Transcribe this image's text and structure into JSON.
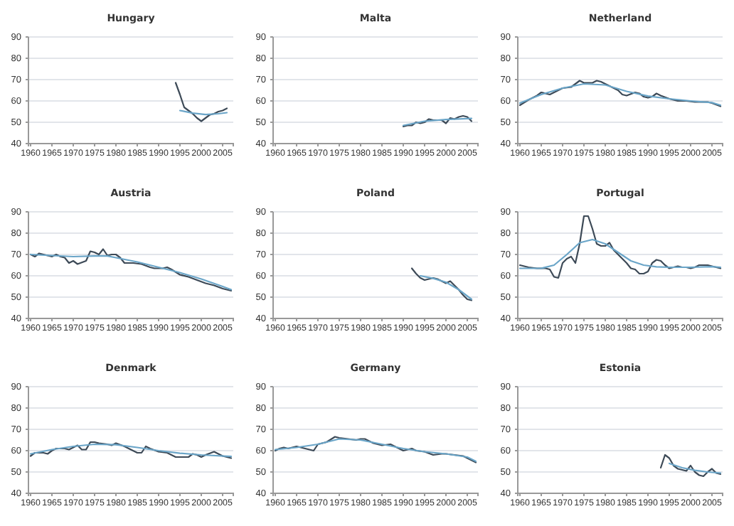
{
  "chart_data": [
    {
      "type": "line",
      "title": "Hungary",
      "xlim": [
        1959.5,
        2007.5
      ],
      "ylim": [
        40,
        90
      ],
      "xticks": [
        1960,
        1965,
        1970,
        1975,
        1980,
        1985,
        1990,
        1995,
        2000,
        2005
      ],
      "yticks": [
        40,
        50,
        60,
        70,
        80,
        90
      ],
      "grid": "y",
      "series": [
        {
          "color": "#3d4a57",
          "x": [
            1994,
            1995,
            1996,
            1997,
            1998,
            1999,
            2000,
            2001,
            2002,
            2003,
            2004,
            2005,
            2006
          ],
          "values": [
            68.5,
            63,
            57,
            55.5,
            54,
            52,
            50.5,
            52,
            53.5,
            54,
            55,
            55.5,
            56.5
          ]
        },
        {
          "color": "#6aa5c8",
          "x": [
            1995,
            1998,
            2001,
            2004,
            2006
          ],
          "values": [
            55.5,
            54.3,
            53.6,
            54,
            54.5
          ]
        }
      ]
    },
    {
      "type": "line",
      "title": "Malta",
      "xlim": [
        1959.5,
        2007.5
      ],
      "ylim": [
        40,
        90
      ],
      "xticks": [
        1960,
        1965,
        1970,
        1975,
        1980,
        1985,
        1990,
        1995,
        2000,
        2005
      ],
      "yticks": [
        40,
        50,
        60,
        70,
        80,
        90
      ],
      "grid": "y",
      "series": [
        {
          "color": "#3d4a57",
          "x": [
            1990,
            1991,
            1992,
            1993,
            1994,
            1995,
            1996,
            1997,
            1998,
            1999,
            2000,
            2001,
            2002,
            2003,
            2004,
            2005,
            2006
          ],
          "values": [
            48,
            48.5,
            48.5,
            50,
            49.5,
            50,
            51.5,
            51,
            51,
            51,
            49.5,
            52,
            51.5,
            52.5,
            53,
            52.5,
            50.5
          ]
        },
        {
          "color": "#6aa5c8",
          "x": [
            1990,
            1995,
            2000,
            2006
          ],
          "values": [
            48.5,
            50.5,
            51.3,
            51.8
          ]
        }
      ]
    },
    {
      "type": "line",
      "title": "Netherland",
      "xlim": [
        1959.5,
        2007.5
      ],
      "ylim": [
        40,
        90
      ],
      "xticks": [
        1960,
        1965,
        1970,
        1975,
        1980,
        1985,
        1990,
        1995,
        2000,
        2005
      ],
      "yticks": [
        40,
        50,
        60,
        70,
        80,
        90
      ],
      "grid": "y",
      "series": [
        {
          "color": "#3d4a57",
          "x": [
            1960,
            1962,
            1964,
            1965,
            1966,
            1967,
            1968,
            1970,
            1972,
            1974,
            1975,
            1977,
            1978,
            1979,
            1981,
            1983,
            1984,
            1985,
            1987,
            1988,
            1989,
            1990,
            1991,
            1992,
            1993,
            1995,
            1997,
            1999,
            2001,
            2003,
            2004,
            2005,
            2007
          ],
          "values": [
            58,
            60.5,
            62.5,
            64,
            63.5,
            63,
            64,
            66,
            66.5,
            69.5,
            68.5,
            68.5,
            69.5,
            69,
            67,
            65,
            63,
            62.5,
            64,
            63.5,
            62,
            61.5,
            62,
            63.5,
            62.5,
            61,
            60,
            60,
            59.5,
            59.5,
            59.5,
            59,
            57.5
          ]
        },
        {
          "color": "#6aa5c8",
          "x": [
            1960,
            1965,
            1970,
            1975,
            1980,
            1985,
            1990,
            1995,
            2000,
            2005,
            2007
          ],
          "values": [
            59,
            63,
            66,
            68,
            67.5,
            64.5,
            62.3,
            61,
            60,
            59.2,
            58
          ]
        }
      ]
    },
    {
      "type": "line",
      "title": "Austria",
      "xlim": [
        1959.5,
        2007.5
      ],
      "ylim": [
        40,
        90
      ],
      "xticks": [
        1960,
        1965,
        1970,
        1975,
        1980,
        1985,
        1990,
        1995,
        2000,
        2005
      ],
      "yticks": [
        40,
        50,
        60,
        70,
        80,
        90
      ],
      "grid": "y",
      "series": [
        {
          "color": "#3d4a57",
          "x": [
            1960,
            1961,
            1962,
            1964,
            1965,
            1966,
            1967,
            1968,
            1969,
            1970,
            1971,
            1973,
            1974,
            1975,
            1976,
            1977,
            1978,
            1979,
            1980,
            1981,
            1982,
            1984,
            1986,
            1988,
            1989,
            1991,
            1992,
            1993,
            1995,
            1997,
            1999,
            2001,
            2003,
            2005,
            2007
          ],
          "values": [
            70,
            69,
            70.5,
            69.5,
            69,
            70,
            69,
            68.5,
            66,
            67,
            65.5,
            67,
            71.5,
            71,
            70,
            72.5,
            69.5,
            70,
            70,
            68.5,
            66,
            66,
            65.5,
            64,
            63.5,
            63.5,
            64,
            63,
            60.5,
            59.5,
            58,
            56.5,
            55.5,
            54,
            53
          ]
        },
        {
          "color": "#6aa5c8",
          "x": [
            1960,
            1965,
            1970,
            1975,
            1978,
            1980,
            1985,
            1990,
            1995,
            2000,
            2005,
            2007
          ],
          "values": [
            70,
            69.5,
            69,
            69.3,
            69.3,
            68.5,
            66.5,
            64,
            61.5,
            58.5,
            55,
            53.5
          ]
        }
      ]
    },
    {
      "type": "line",
      "title": "Poland",
      "xlim": [
        1959.5,
        2007.5
      ],
      "ylim": [
        40,
        90
      ],
      "xticks": [
        1960,
        1965,
        1970,
        1975,
        1980,
        1985,
        1990,
        1995,
        2000,
        2005
      ],
      "yticks": [
        40,
        50,
        60,
        70,
        80,
        90
      ],
      "grid": "y",
      "series": [
        {
          "color": "#3d4a57",
          "x": [
            1992,
            1993,
            1994,
            1995,
            1996,
            1997,
            1998,
            1999,
            2000,
            2001,
            2002,
            2003,
            2004,
            2005,
            2006
          ],
          "values": [
            63.5,
            61,
            59,
            58,
            58.5,
            59,
            58.5,
            57.5,
            56.5,
            57.5,
            55.5,
            53.5,
            51,
            49,
            48.5
          ]
        },
        {
          "color": "#6aa5c8",
          "x": [
            1994,
            1997,
            2000,
            2003,
            2006
          ],
          "values": [
            60,
            58.8,
            57,
            53.5,
            49
          ]
        }
      ]
    },
    {
      "type": "line",
      "title": "Portugal",
      "xlim": [
        1959.5,
        2007.5
      ],
      "ylim": [
        40,
        90
      ],
      "xticks": [
        1960,
        1965,
        1970,
        1975,
        1980,
        1985,
        1990,
        1995,
        2000,
        2005
      ],
      "yticks": [
        40,
        50,
        60,
        70,
        80,
        90
      ],
      "grid": "y",
      "series": [
        {
          "color": "#3d4a57",
          "x": [
            1960,
            1962,
            1964,
            1966,
            1967,
            1968,
            1969,
            1970,
            1971,
            1972,
            1973,
            1974,
            1975,
            1976,
            1977,
            1978,
            1979,
            1980,
            1981,
            1982,
            1984,
            1985,
            1986,
            1987,
            1988,
            1989,
            1990,
            1991,
            1992,
            1993,
            1994,
            1995,
            1996,
            1997,
            1998,
            1999,
            2000,
            2001,
            2002,
            2003,
            2004,
            2005,
            2006,
            2007
          ],
          "values": [
            65,
            64,
            63.5,
            63.5,
            63,
            59.5,
            59,
            66,
            68,
            69,
            66,
            75,
            88,
            88,
            82,
            75,
            74,
            74,
            75.5,
            72,
            68,
            66,
            63.5,
            63,
            61,
            61,
            62,
            66,
            67.5,
            67,
            65,
            63.5,
            64,
            64.5,
            64,
            64,
            63.5,
            64,
            65,
            65,
            65,
            64.5,
            64,
            63.5
          ]
        },
        {
          "color": "#6aa5c8",
          "x": [
            1960,
            1965,
            1968,
            1971,
            1974,
            1977,
            1980,
            1983,
            1986,
            1989,
            1992,
            1995,
            2000,
            2005,
            2007
          ],
          "values": [
            63.5,
            63.5,
            65,
            70,
            75.5,
            77,
            75,
            71,
            67,
            65,
            64.2,
            64,
            64,
            64.3,
            64
          ]
        }
      ]
    },
    {
      "type": "line",
      "title": "Denmark",
      "xlim": [
        1959.5,
        2007.5
      ],
      "ylim": [
        40,
        90
      ],
      "xticks": [
        1960,
        1965,
        1970,
        1975,
        1980,
        1985,
        1990,
        1995,
        2000,
        2005
      ],
      "yticks": [
        40,
        50,
        60,
        70,
        80,
        90
      ],
      "grid": "y",
      "series": [
        {
          "color": "#3d4a57",
          "x": [
            1960,
            1961,
            1963,
            1964,
            1965,
            1966,
            1968,
            1969,
            1971,
            1972,
            1973,
            1974,
            1975,
            1976,
            1978,
            1979,
            1980,
            1982,
            1984,
            1985,
            1986,
            1987,
            1988,
            1990,
            1992,
            1994,
            1996,
            1997,
            1998,
            1999,
            2000,
            2001,
            2003,
            2004,
            2005,
            2007
          ],
          "values": [
            57.5,
            59,
            59,
            58.5,
            60,
            61,
            61,
            60.5,
            62.5,
            60.5,
            60.5,
            64,
            64,
            63.5,
            63,
            62.5,
            63.5,
            62,
            60,
            59,
            59,
            62,
            61,
            59.5,
            59,
            57,
            57,
            57,
            58.5,
            58,
            57,
            58,
            59.5,
            58.5,
            57.5,
            56.5
          ]
        },
        {
          "color": "#6aa5c8",
          "x": [
            1960,
            1965,
            1970,
            1975,
            1980,
            1985,
            1990,
            1995,
            2000,
            2007
          ],
          "values": [
            58.5,
            60.5,
            62,
            63,
            62.8,
            61.5,
            60,
            58.8,
            58,
            57.3
          ]
        }
      ]
    },
    {
      "type": "line",
      "title": "Germany",
      "xlim": [
        1959.5,
        2007.5
      ],
      "ylim": [
        40,
        90
      ],
      "xticks": [
        1960,
        1965,
        1970,
        1975,
        1980,
        1985,
        1990,
        1995,
        2000,
        2005
      ],
      "yticks": [
        40,
        50,
        60,
        70,
        80,
        90
      ],
      "grid": "y",
      "series": [
        {
          "color": "#3d4a57",
          "x": [
            1960,
            1961,
            1962,
            1963,
            1965,
            1966,
            1968,
            1969,
            1970,
            1972,
            1974,
            1975,
            1977,
            1979,
            1980,
            1981,
            1983,
            1985,
            1987,
            1988,
            1990,
            1992,
            1993,
            1995,
            1997,
            1999,
            2000,
            2002,
            2004,
            2006,
            2007
          ],
          "values": [
            60,
            61,
            61.5,
            61,
            62,
            61.5,
            60.5,
            60,
            63,
            64,
            66.5,
            66,
            65.5,
            65,
            65.5,
            65.5,
            63.5,
            62.5,
            63,
            62,
            60,
            61,
            60,
            59.5,
            58,
            58.5,
            58.5,
            58,
            57.5,
            55.5,
            54.5
          ]
        },
        {
          "color": "#6aa5c8",
          "x": [
            1960,
            1965,
            1970,
            1975,
            1980,
            1985,
            1990,
            1995,
            2000,
            2005,
            2007
          ],
          "values": [
            60.5,
            61.5,
            63,
            65.5,
            65,
            63,
            61,
            59.5,
            58.5,
            57,
            55
          ]
        }
      ]
    },
    {
      "type": "line",
      "title": "Estonia",
      "xlim": [
        1959.5,
        2007.5
      ],
      "ylim": [
        40,
        90
      ],
      "xticks": [
        1960,
        1965,
        1970,
        1975,
        1980,
        1985,
        1990,
        1995,
        2000,
        2005
      ],
      "yticks": [
        40,
        50,
        60,
        70,
        80,
        90
      ],
      "grid": "y",
      "series": [
        {
          "color": "#3d4a57",
          "x": [
            1993,
            1994,
            1995,
            1996,
            1997,
            1998,
            1999,
            2000,
            2001,
            2002,
            2003,
            2004,
            2005,
            2006,
            2007
          ],
          "values": [
            52,
            58,
            56.5,
            53,
            51.5,
            51,
            50.5,
            53,
            50,
            48.5,
            48,
            50,
            51.5,
            49.5,
            49
          ]
        },
        {
          "color": "#6aa5c8",
          "x": [
            1995,
            1998,
            2001,
            2004,
            2007
          ],
          "values": [
            54,
            52,
            50.8,
            50,
            49.5
          ]
        }
      ]
    }
  ]
}
